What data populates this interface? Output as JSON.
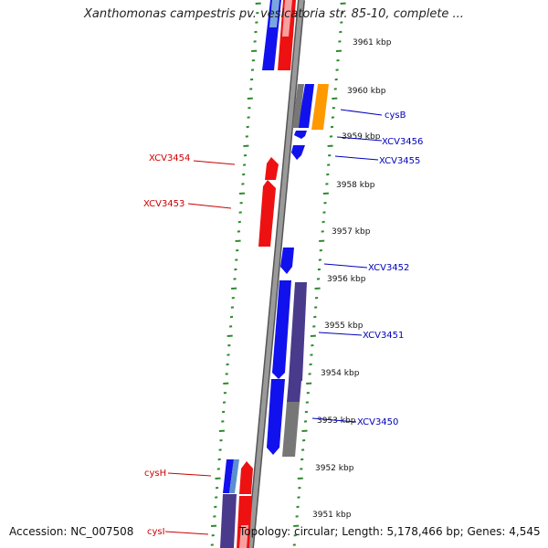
{
  "title": "Xanthomonas campestris pv. vesicatoria str. 85-10, complete ...",
  "footer": {
    "accession": "Accession: NC_007508",
    "topology": "Topology: circular; Length: 5,178,466 bp; Genes: 4,545"
  },
  "colors": {
    "forward_gene": "#ee1111",
    "reverse_gene": "#1111ee",
    "forward_label": "#cc0000",
    "reverse_label": "#0000bb",
    "rna_orange": "#ff9900",
    "cog_purple": "#4a3a8c",
    "cog_gray": "#777777",
    "light_blue": "#5b8fd0",
    "backbone": "#888888",
    "tick_green": "#2d8a2d"
  },
  "kbp_labels": [
    "3961 kbp",
    "3960 kbp",
    "3959 kbp",
    "3958 kbp",
    "3957 kbp",
    "3956 kbp",
    "3955 kbp",
    "3954 kbp",
    "3953 kbp",
    "3952 kbp",
    "3951 kbp"
  ],
  "gene_labels": [
    {
      "name": "cysB",
      "strand": "reverse"
    },
    {
      "name": "XCV3456",
      "strand": "reverse"
    },
    {
      "name": "XCV3455",
      "strand": "reverse"
    },
    {
      "name": "XCV3454",
      "strand": "forward"
    },
    {
      "name": "XCV3453",
      "strand": "forward"
    },
    {
      "name": "XCV3452",
      "strand": "reverse"
    },
    {
      "name": "XCV3451",
      "strand": "reverse"
    },
    {
      "name": "XCV3450",
      "strand": "reverse"
    },
    {
      "name": "cysH",
      "strand": "forward"
    },
    {
      "name": "cysI",
      "strand": "forward"
    }
  ]
}
